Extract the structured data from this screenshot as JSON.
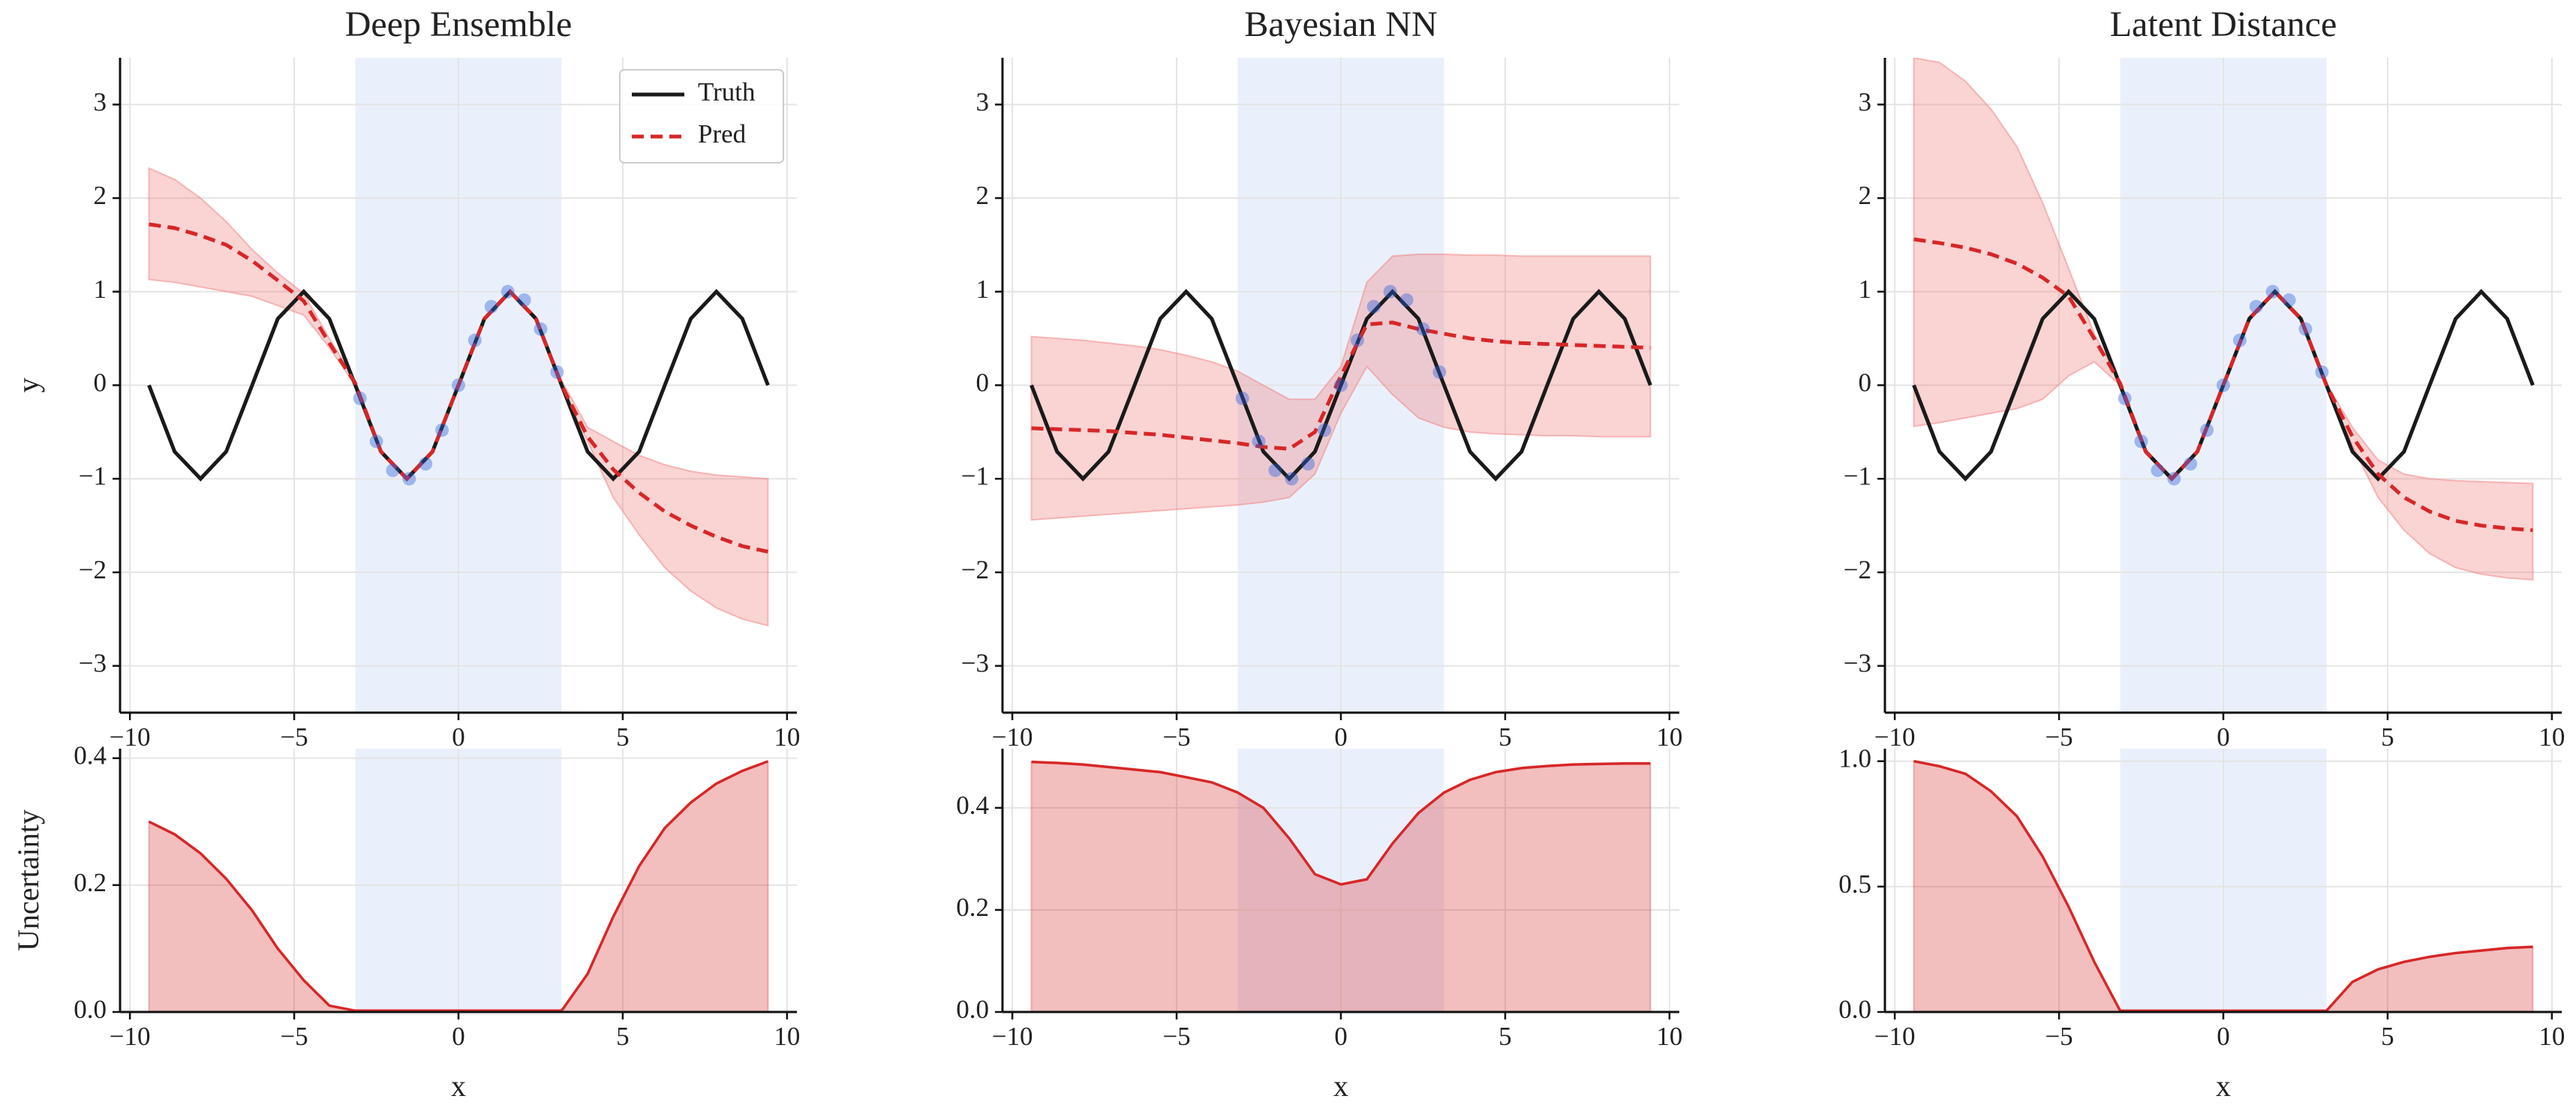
{
  "chart_data": [
    {
      "type": "line",
      "title": "Deep Ensemble",
      "ylabel": "y",
      "xlim": [
        -10.3,
        10.3
      ],
      "ylim": [
        -3.5,
        3.5
      ],
      "xticks": [
        {
          "value": -10,
          "label": "−10"
        },
        {
          "value": -5,
          "label": "−5"
        },
        0,
        5,
        10
      ],
      "yticks": [
        {
          "value": -3,
          "label": "−3"
        },
        {
          "value": -2,
          "label": "−2"
        },
        {
          "value": -1,
          "label": "−1"
        },
        0,
        1,
        2,
        3
      ],
      "grid": true,
      "span": [
        -3.14,
        3.14
      ],
      "span_color": "#d6e2f8",
      "legend": "upper right",
      "x": [
        -9.42,
        -8.64,
        -7.85,
        -7.07,
        -6.28,
        -5.5,
        -4.71,
        -3.93,
        -3.14,
        -2.36,
        -1.57,
        -0.79,
        0,
        0.79,
        1.57,
        2.36,
        3.14,
        3.93,
        4.71,
        5.5,
        6.28,
        7.07,
        7.85,
        8.64,
        9.42
      ],
      "series": [
        {
          "name": "Truth",
          "color": "#1a1a1a",
          "values": [
            0,
            -0.71,
            -1,
            -0.71,
            0,
            0.71,
            1,
            0.71,
            0,
            -0.71,
            -1,
            -0.71,
            0,
            0.71,
            1,
            0.71,
            0,
            -0.71,
            -1,
            -0.71,
            0,
            0.71,
            1,
            0.71,
            0
          ]
        },
        {
          "name": "Pred",
          "color": "#d62728",
          "dashed": true,
          "values": [
            1.72,
            1.68,
            1.6,
            1.5,
            1.33,
            1.12,
            0.9,
            0.45,
            0.02,
            -0.71,
            -1,
            -0.71,
            0,
            0.71,
            1,
            0.71,
            0,
            -0.55,
            -0.9,
            -1.15,
            -1.35,
            -1.5,
            -1.62,
            -1.72,
            -1.78
          ]
        }
      ],
      "band": {
        "color": "#f08080",
        "upper": [
          2.32,
          2.2,
          2.0,
          1.75,
          1.45,
          1.2,
          0.98,
          0.5,
          0.05,
          -0.69,
          -0.98,
          -0.69,
          0.02,
          0.73,
          1.02,
          0.73,
          0.05,
          -0.45,
          -0.6,
          -0.75,
          -0.85,
          -0.92,
          -0.96,
          -0.98,
          -1.0
        ],
        "lower": [
          1.13,
          1.1,
          1.05,
          1.0,
          0.95,
          0.85,
          0.75,
          0.4,
          0.0,
          -0.73,
          -1.02,
          -0.73,
          -0.02,
          0.69,
          0.98,
          0.69,
          -0.02,
          -0.6,
          -1.2,
          -1.6,
          -1.95,
          -2.2,
          -2.38,
          -2.5,
          -2.57
        ]
      },
      "points": {
        "color": "#2b5fd9",
        "x": [
          -3,
          -2.5,
          -2,
          -1.5,
          -1,
          -0.5,
          0,
          0.5,
          1,
          1.5,
          2,
          2.5,
          3
        ],
        "y": [
          -0.14,
          -0.6,
          -0.91,
          -1.0,
          -0.84,
          -0.48,
          0,
          0.48,
          0.84,
          1.0,
          0.91,
          0.6,
          0.14
        ]
      }
    },
    {
      "type": "line",
      "title": "Bayesian NN",
      "xlim": [
        -10.3,
        10.3
      ],
      "ylim": [
        -3.5,
        3.5
      ],
      "xticks": [
        {
          "value": -10,
          "label": "−10"
        },
        {
          "value": -5,
          "label": "−5"
        },
        0,
        5,
        10
      ],
      "yticks": [
        {
          "value": -3,
          "label": "−3"
        },
        {
          "value": -2,
          "label": "−2"
        },
        {
          "value": -1,
          "label": "−1"
        },
        0,
        1,
        2,
        3
      ],
      "grid": true,
      "span": [
        -3.14,
        3.14
      ],
      "span_color": "#d6e2f8",
      "x": [
        -9.42,
        -8.64,
        -7.85,
        -7.07,
        -6.28,
        -5.5,
        -4.71,
        -3.93,
        -3.14,
        -2.36,
        -1.57,
        -0.79,
        0,
        0.79,
        1.57,
        2.36,
        3.14,
        3.93,
        4.71,
        5.5,
        6.28,
        7.07,
        7.85,
        8.64,
        9.42
      ],
      "series": [
        {
          "color": "#1a1a1a",
          "values": [
            0,
            -0.71,
            -1,
            -0.71,
            0,
            0.71,
            1,
            0.71,
            0,
            -0.71,
            -1,
            -0.71,
            0,
            0.71,
            1,
            0.71,
            0,
            -0.71,
            -1,
            -0.71,
            0,
            0.71,
            1,
            0.71,
            0
          ]
        },
        {
          "color": "#d62728",
          "dashed": true,
          "values": [
            -0.46,
            -0.47,
            -0.48,
            -0.49,
            -0.51,
            -0.53,
            -0.56,
            -0.59,
            -0.62,
            -0.66,
            -0.68,
            -0.5,
            0.1,
            0.65,
            0.67,
            0.6,
            0.55,
            0.5,
            0.47,
            0.45,
            0.44,
            0.43,
            0.42,
            0.41,
            0.4
          ]
        }
      ],
      "band": {
        "color": "#f08080",
        "upper": [
          0.52,
          0.5,
          0.48,
          0.45,
          0.42,
          0.38,
          0.32,
          0.25,
          0.15,
          0.0,
          -0.15,
          -0.15,
          0.2,
          1.1,
          1.38,
          1.4,
          1.4,
          1.39,
          1.39,
          1.38,
          1.38,
          1.38,
          1.38,
          1.38,
          1.38
        ],
        "lower": [
          -1.44,
          -1.42,
          -1.4,
          -1.38,
          -1.36,
          -1.34,
          -1.32,
          -1.3,
          -1.28,
          -1.25,
          -1.2,
          -0.95,
          -0.3,
          0.2,
          -0.1,
          -0.35,
          -0.45,
          -0.5,
          -0.52,
          -0.53,
          -0.54,
          -0.54,
          -0.55,
          -0.55,
          -0.55
        ]
      },
      "points": {
        "color": "#2b5fd9",
        "x": [
          -3,
          -2.5,
          -2,
          -1.5,
          -1,
          -0.5,
          0,
          0.5,
          1,
          1.5,
          2,
          2.5,
          3
        ],
        "y": [
          -0.14,
          -0.6,
          -0.91,
          -1.0,
          -0.84,
          -0.48,
          0,
          0.48,
          0.84,
          1.0,
          0.91,
          0.6,
          0.14
        ]
      }
    },
    {
      "type": "line",
      "title": "Latent Distance",
      "xlim": [
        -10.3,
        10.3
      ],
      "ylim": [
        -3.5,
        3.5
      ],
      "xticks": [
        {
          "value": -10,
          "label": "−10"
        },
        {
          "value": -5,
          "label": "−5"
        },
        0,
        5,
        10
      ],
      "yticks": [
        {
          "value": -3,
          "label": "−3"
        },
        {
          "value": -2,
          "label": "−2"
        },
        {
          "value": -1,
          "label": "−1"
        },
        0,
        1,
        2,
        3
      ],
      "grid": true,
      "span": [
        -3.14,
        3.14
      ],
      "span_color": "#d6e2f8",
      "x": [
        -9.42,
        -8.64,
        -7.85,
        -7.07,
        -6.28,
        -5.5,
        -4.71,
        -3.93,
        -3.14,
        -2.36,
        -1.57,
        -0.79,
        0,
        0.79,
        1.57,
        2.36,
        3.14,
        3.93,
        4.71,
        5.5,
        6.28,
        7.07,
        7.85,
        8.64,
        9.42
      ],
      "series": [
        {
          "color": "#1a1a1a",
          "values": [
            0,
            -0.71,
            -1,
            -0.71,
            0,
            0.71,
            1,
            0.71,
            0,
            -0.71,
            -1,
            -0.71,
            0,
            0.71,
            1,
            0.71,
            0,
            -0.71,
            -1,
            -0.71,
            0,
            0.71,
            1,
            0.71,
            0
          ]
        },
        {
          "color": "#d62728",
          "dashed": true,
          "values": [
            1.56,
            1.52,
            1.47,
            1.4,
            1.3,
            1.15,
            0.95,
            0.5,
            0.02,
            -0.71,
            -1,
            -0.71,
            0,
            0.71,
            1,
            0.71,
            0,
            -0.55,
            -0.95,
            -1.2,
            -1.35,
            -1.45,
            -1.5,
            -1.53,
            -1.55
          ]
        }
      ],
      "band": {
        "color": "#f08080",
        "upper": [
          3.5,
          3.45,
          3.25,
          2.95,
          2.55,
          1.95,
          1.25,
          0.55,
          0.03,
          -0.69,
          -0.98,
          -0.69,
          0.02,
          0.73,
          1.02,
          0.73,
          0.02,
          -0.45,
          -0.8,
          -0.95,
          -1.0,
          -1.02,
          -1.03,
          -1.04,
          -1.05
        ],
        "lower": [
          -0.44,
          -0.4,
          -0.35,
          -0.3,
          -0.25,
          -0.15,
          0.1,
          0.25,
          0.0,
          -0.73,
          -1.02,
          -0.73,
          -0.02,
          0.69,
          0.98,
          0.69,
          -0.02,
          -0.65,
          -1.2,
          -1.55,
          -1.8,
          -1.95,
          -2.02,
          -2.06,
          -2.08
        ]
      },
      "points": {
        "color": "#2b5fd9",
        "x": [
          -3,
          -2.5,
          -2,
          -1.5,
          -1,
          -0.5,
          0,
          0.5,
          1,
          1.5,
          2,
          2.5,
          3
        ],
        "y": [
          -0.14,
          -0.6,
          -0.91,
          -1.0,
          -0.84,
          -0.48,
          0,
          0.48,
          0.84,
          1.0,
          0.91,
          0.6,
          0.14
        ]
      }
    },
    {
      "type": "area",
      "ylabel": "Uncertainty",
      "xlabel": "x",
      "xlim": [
        -10.3,
        10.3
      ],
      "ylim": [
        0,
        0.415
      ],
      "xticks": [
        {
          "value": -10,
          "label": "−10"
        },
        {
          "value": -5,
          "label": "−5"
        },
        0,
        5,
        10
      ],
      "yticks": [
        {
          "value": 0,
          "label": "0.0"
        },
        {
          "value": 0.2,
          "label": "0.2"
        },
        {
          "value": 0.4,
          "label": "0.4"
        }
      ],
      "grid": true,
      "span": [
        -3.14,
        3.14
      ],
      "span_color": "#d6e2f8",
      "color": "#d62728",
      "x": [
        -9.42,
        -8.64,
        -7.85,
        -7.07,
        -6.28,
        -5.5,
        -4.71,
        -3.93,
        -3.14,
        -2.36,
        -1.57,
        -0.79,
        0,
        0.79,
        1.57,
        2.36,
        3.14,
        3.93,
        4.71,
        5.5,
        6.28,
        7.07,
        7.85,
        8.64,
        9.42
      ],
      "values": [
        0.3,
        0.28,
        0.25,
        0.21,
        0.16,
        0.1,
        0.05,
        0.01,
        0.002,
        0.002,
        0.002,
        0.002,
        0.002,
        0.002,
        0.002,
        0.002,
        0.002,
        0.06,
        0.15,
        0.23,
        0.29,
        0.33,
        0.36,
        0.38,
        0.395
      ]
    },
    {
      "type": "area",
      "xlabel": "x",
      "xlim": [
        -10.3,
        10.3
      ],
      "ylim": [
        0,
        0.516
      ],
      "xticks": [
        {
          "value": -10,
          "label": "−10"
        },
        {
          "value": -5,
          "label": "−5"
        },
        0,
        5,
        10
      ],
      "yticks": [
        {
          "value": 0,
          "label": "0.0"
        },
        {
          "value": 0.2,
          "label": "0.2"
        },
        {
          "value": 0.4,
          "label": "0.4"
        }
      ],
      "grid": true,
      "span": [
        -3.14,
        3.14
      ],
      "span_color": "#d6e2f8",
      "color": "#d62728",
      "x": [
        -9.42,
        -8.64,
        -7.85,
        -7.07,
        -6.28,
        -5.5,
        -4.71,
        -3.93,
        -3.14,
        -2.36,
        -1.57,
        -0.79,
        0,
        0.79,
        1.57,
        2.36,
        3.14,
        3.93,
        4.71,
        5.5,
        6.28,
        7.07,
        7.85,
        8.64,
        9.42
      ],
      "values": [
        0.49,
        0.488,
        0.485,
        0.48,
        0.475,
        0.47,
        0.46,
        0.45,
        0.43,
        0.4,
        0.34,
        0.27,
        0.25,
        0.26,
        0.33,
        0.39,
        0.43,
        0.455,
        0.47,
        0.478,
        0.482,
        0.485,
        0.486,
        0.487,
        0.487
      ]
    },
    {
      "type": "area",
      "xlabel": "x",
      "xlim": [
        -10.3,
        10.3
      ],
      "ylim": [
        0,
        1.05
      ],
      "xticks": [
        {
          "value": -10,
          "label": "−10"
        },
        {
          "value": -5,
          "label": "−5"
        },
        0,
        5,
        10
      ],
      "yticks": [
        {
          "value": 0,
          "label": "0.0"
        },
        {
          "value": 0.5,
          "label": "0.5"
        },
        {
          "value": 1,
          "label": "1.0"
        }
      ],
      "grid": true,
      "span": [
        -3.14,
        3.14
      ],
      "span_color": "#d6e2f8",
      "color": "#d62728",
      "x": [
        -9.42,
        -8.64,
        -7.85,
        -7.07,
        -6.28,
        -5.5,
        -4.71,
        -3.93,
        -3.14,
        -2.36,
        -1.57,
        -0.79,
        0,
        0.79,
        1.57,
        2.36,
        3.14,
        3.93,
        4.71,
        5.5,
        6.28,
        7.07,
        7.85,
        8.64,
        9.42
      ],
      "values": [
        1.0,
        0.98,
        0.95,
        0.88,
        0.78,
        0.62,
        0.42,
        0.2,
        0.005,
        0.005,
        0.005,
        0.005,
        0.005,
        0.005,
        0.005,
        0.005,
        0.005,
        0.12,
        0.17,
        0.2,
        0.22,
        0.235,
        0.245,
        0.255,
        0.26
      ]
    }
  ]
}
